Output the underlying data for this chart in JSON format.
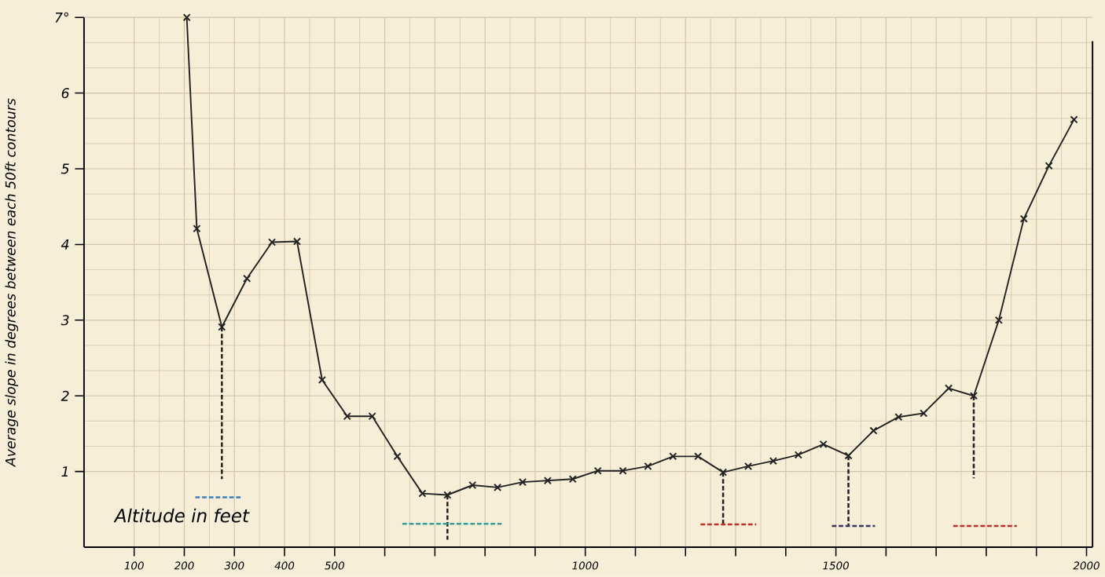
{
  "chart_data": {
    "type": "line",
    "xlabel": "Altitude in feet",
    "ylabel": "Average slope in degrees between each 50ft contours",
    "xlim": [
      0,
      2012
    ],
    "ylim": [
      0,
      7
    ],
    "xticks": [
      100,
      200,
      300,
      400,
      500,
      {
        "value": 600,
        "label": null
      },
      {
        "value": 700,
        "label": null
      },
      {
        "value": 800,
        "label": null
      },
      {
        "value": 900,
        "label": null
      },
      1000,
      {
        "value": 1100,
        "label": null
      },
      {
        "value": 1200,
        "label": null
      },
      {
        "value": 1300,
        "label": null
      },
      {
        "value": 1400,
        "label": null
      },
      1500,
      {
        "value": 1600,
        "label": null
      },
      {
        "value": 1700,
        "label": null
      },
      {
        "value": 1800,
        "label": null
      },
      {
        "value": 1900,
        "label": null
      },
      2000
    ],
    "yticks": [
      1,
      2,
      3,
      4,
      5,
      6,
      {
        "value": 7,
        "label": "7°"
      }
    ],
    "grid": true,
    "series": [
      {
        "color": "#222222",
        "marker": "cross",
        "x": [
          205,
          225,
          275,
          325,
          375,
          425,
          475,
          525,
          575,
          625,
          675,
          725,
          775,
          825,
          875,
          925,
          975,
          1025,
          1075,
          1125,
          1175,
          1225,
          1275,
          1325,
          1375,
          1425,
          1475,
          1525,
          1575,
          1625,
          1675,
          1725,
          1775,
          1825,
          1875,
          1925,
          1975
        ],
        "values": [
          7,
          4.21,
          2.91,
          3.55,
          4.03,
          4.04,
          2.21,
          1.73,
          1.73,
          1.2,
          0.71,
          0.69,
          0.82,
          0.79,
          0.86,
          0.88,
          0.9,
          1.01,
          1.01,
          1.07,
          1.2,
          1.2,
          0.99,
          1.07,
          1.14,
          1.22,
          1.36,
          1.21,
          1.54,
          1.72,
          1.77,
          2.1,
          2.0,
          3.0,
          4.34,
          5.04,
          5.65
        ]
      },
      {
        "color": "#222222",
        "line_style": "dashed",
        "x": [
          275,
          275
        ],
        "values": [
          2.91,
          0.9
        ]
      },
      {
        "color": "#222222",
        "line_style": "dashed",
        "x": [
          725,
          725
        ],
        "values": [
          0.69,
          0.1
        ]
      },
      {
        "color": "#222222",
        "line_style": "dashed",
        "x": [
          1275,
          1275
        ],
        "values": [
          0.99,
          0.3
        ]
      },
      {
        "color": "#222222",
        "line_style": "dashed",
        "x": [
          1525,
          1525
        ],
        "values": [
          1.21,
          0.28
        ]
      },
      {
        "color": "#222222",
        "line_style": "dashed",
        "x": [
          1775,
          1775
        ],
        "values": [
          2.0,
          0.91
        ]
      },
      {
        "color": "#3a7fc0",
        "line_style": "dashed",
        "x": [
          222,
          314
        ],
        "values": [
          0.66,
          0.66
        ]
      },
      {
        "color": "#2fa39a",
        "line_style": "dashed",
        "x": [
          635,
          833
        ],
        "values": [
          0.31,
          0.31
        ]
      },
      {
        "color": "#c0302a",
        "line_style": "dashed",
        "x": [
          1230,
          1341
        ],
        "values": [
          0.3,
          0.3
        ]
      },
      {
        "color": "#3b3566",
        "line_style": "dashed",
        "x": [
          1492,
          1578
        ],
        "values": [
          0.28,
          0.28
        ]
      },
      {
        "color": "#c0302a",
        "line_style": "dashed",
        "x": [
          1734,
          1861
        ],
        "values": [
          0.28,
          0.28
        ]
      }
    ]
  }
}
